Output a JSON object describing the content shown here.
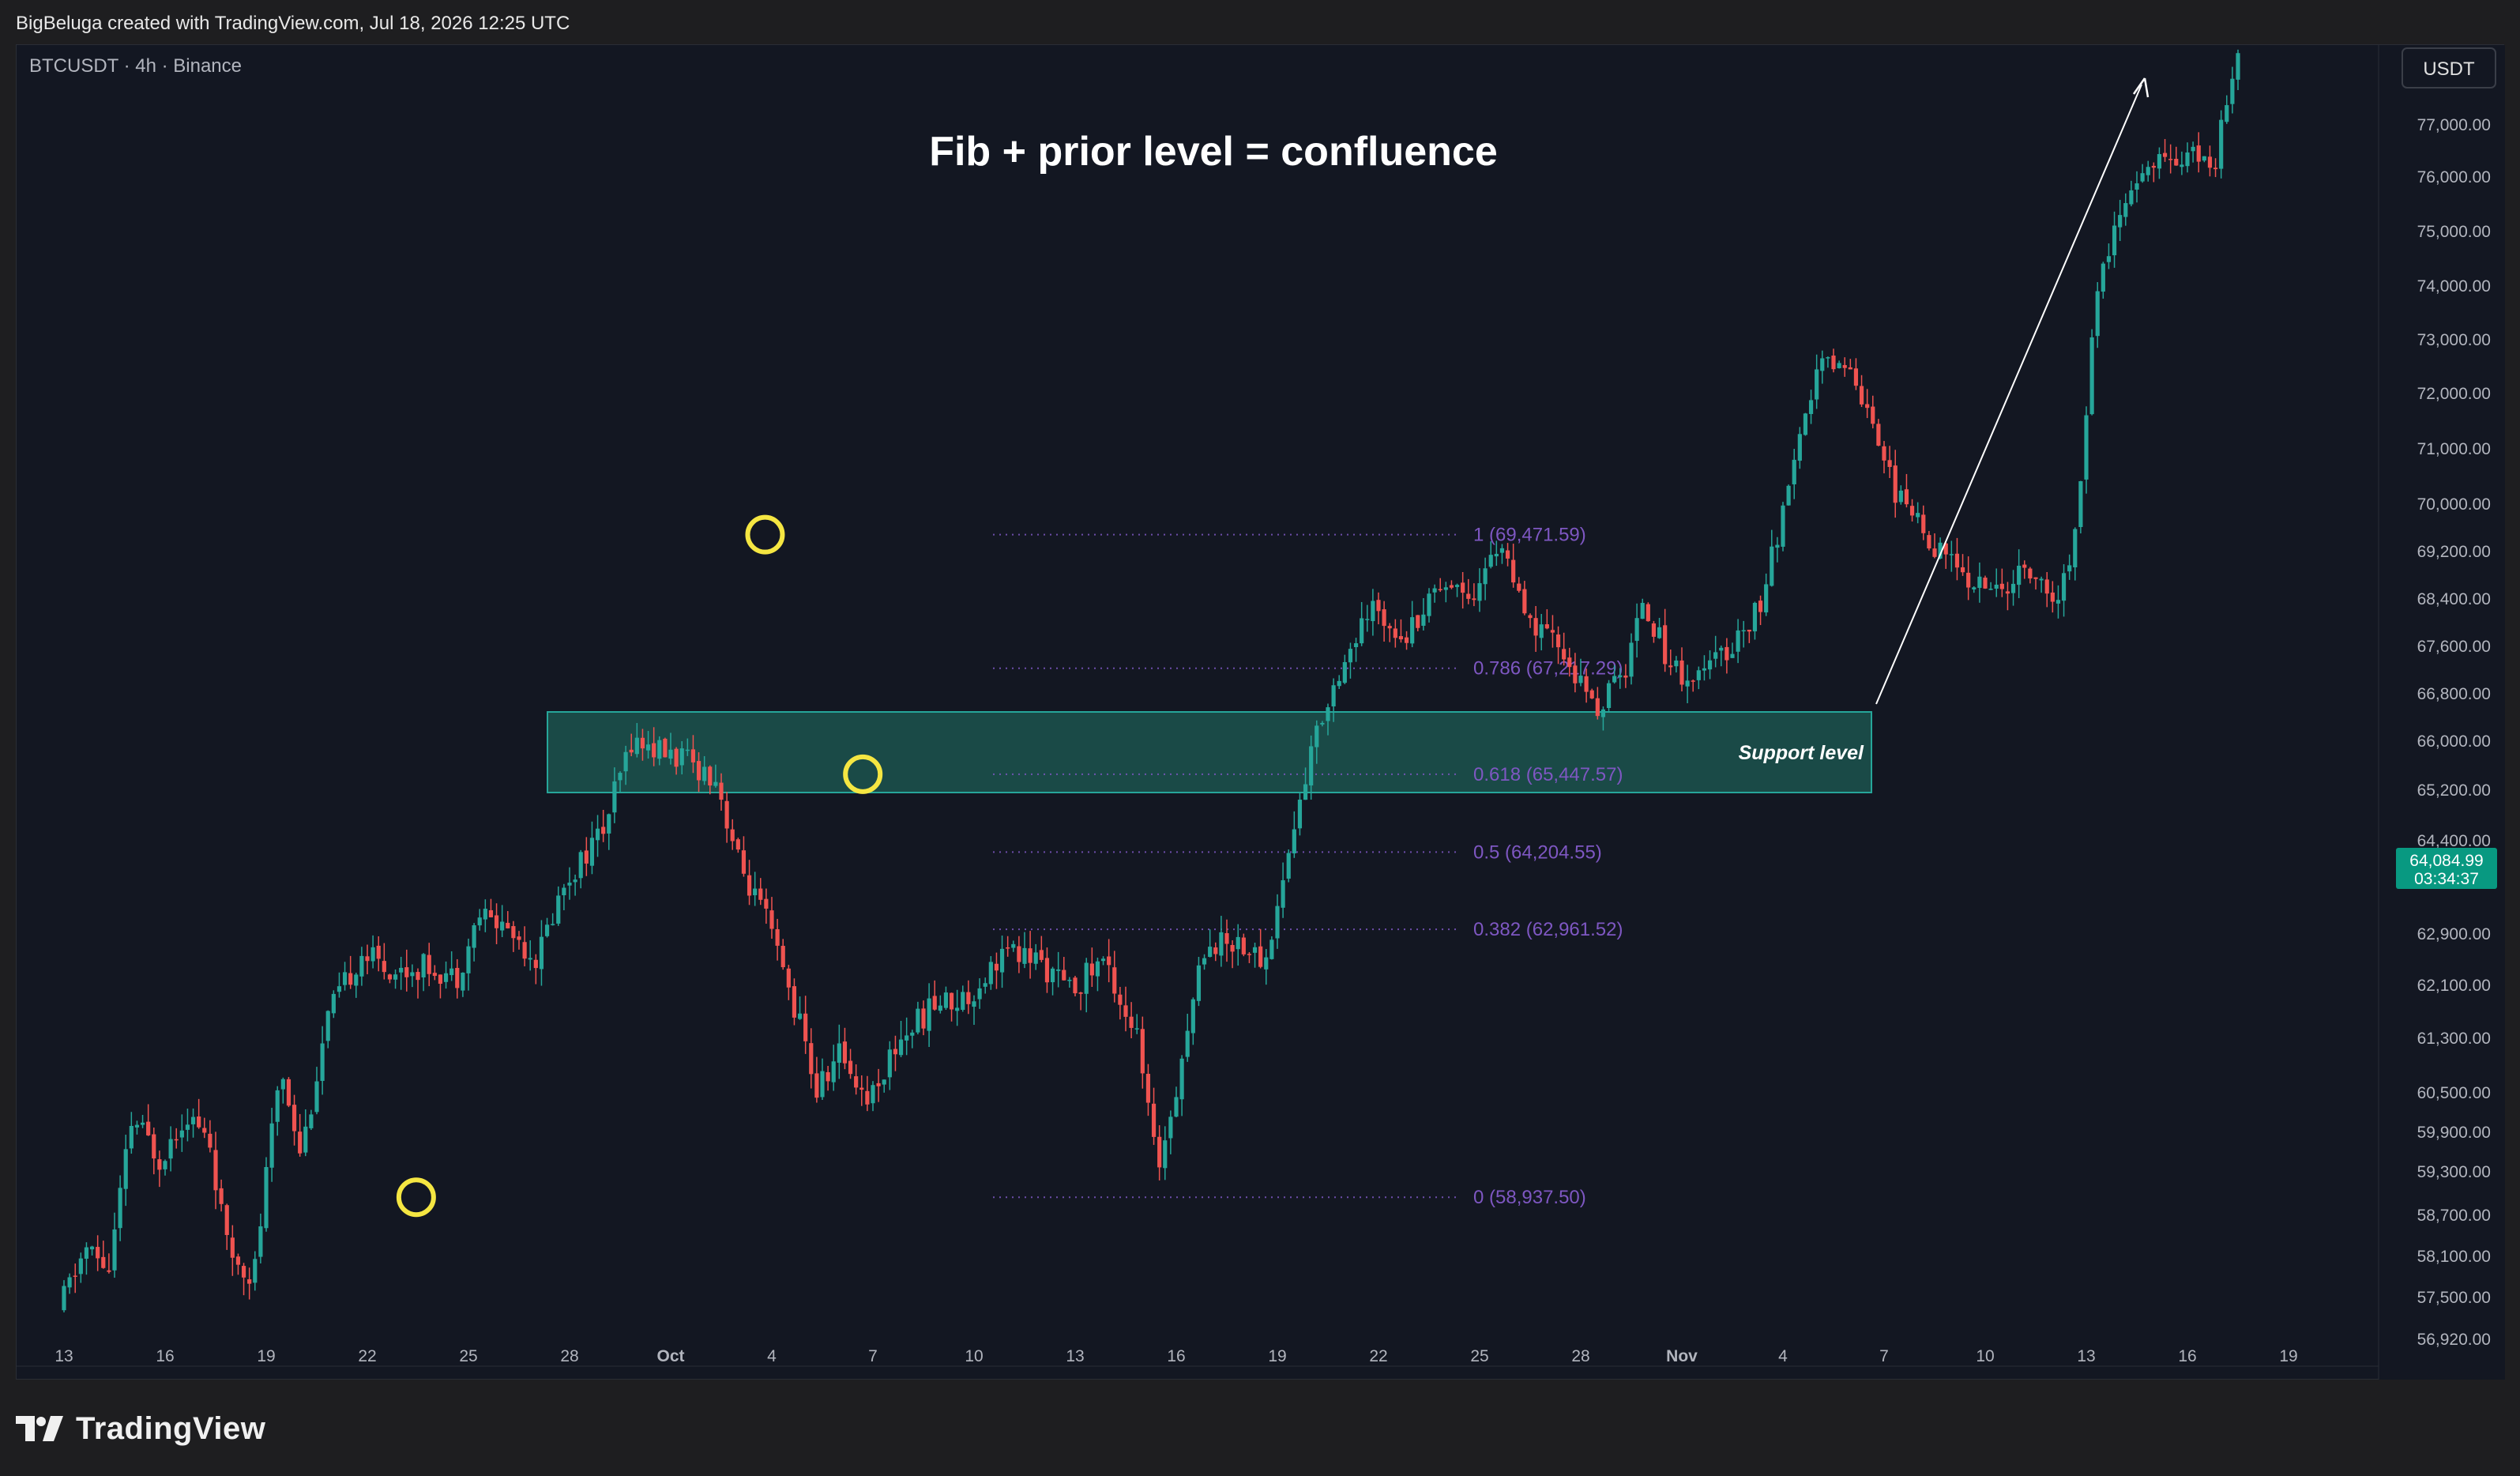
{
  "header": {
    "credit": "BigBeluga created with TradingView.com, Jul 18, 2026 12:25 UTC"
  },
  "symbol_info": "BTCUSDT · 4h · Binance",
  "currency_button": "USDT",
  "footer": {
    "logo_text": "TradingView"
  },
  "colors": {
    "background": "#131722",
    "bull": "#26a69a",
    "bear": "#ef5350",
    "fib": "#7e57c2",
    "zone_fill": "#1d5c54",
    "zone_border": "#26a69a",
    "highlight_circle": "#f5e642",
    "last_price_tag": "#089981"
  },
  "chart_data": {
    "type": "candlestick",
    "title": "Fib + prior level = confluence",
    "symbol": "BTCUSDT",
    "timeframe": "4h",
    "exchange": "Binance",
    "x_ticks": [
      "13",
      "16",
      "19",
      "22",
      "25",
      "28",
      "Oct",
      "4",
      "7",
      "10",
      "13",
      "16",
      "19",
      "22",
      "25",
      "28",
      "Nov",
      "4",
      "7",
      "10",
      "13",
      "16",
      "19"
    ],
    "y_ticks": [
      "77,000.00",
      "76,000.00",
      "75,000.00",
      "74,000.00",
      "73,000.00",
      "72,000.00",
      "71,000.00",
      "70,000.00",
      "69,200.00",
      "68,400.00",
      "67,600.00",
      "66,800.00",
      "66,000.00",
      "65,200.00",
      "64,400.00",
      "62,900.00",
      "62,100.00",
      "61,300.00",
      "60,500.00",
      "59,900.00",
      "59,300.00",
      "58,700.00",
      "58,100.00",
      "57,500.00",
      "56,920.00"
    ],
    "last_price": {
      "value": "64,084.99",
      "countdown": "03:34:37"
    },
    "fib_levels": [
      {
        "ratio": "1",
        "price": 69471.59,
        "label": "1 (69,471.59)"
      },
      {
        "ratio": "0.786",
        "price": 67217.29,
        "label": "0.786 (67,217.29)"
      },
      {
        "ratio": "0.618",
        "price": 65447.57,
        "label": "0.618 (65,447.57)"
      },
      {
        "ratio": "0.5",
        "price": 64204.55,
        "label": "0.5 (64,204.55)"
      },
      {
        "ratio": "0.382",
        "price": 62961.52,
        "label": "0.382 (62,961.52)"
      },
      {
        "ratio": "0",
        "price": 58937.5,
        "label": "0 (58,937.50)"
      }
    ],
    "support_zone": {
      "label": "Support level",
      "low": 65150,
      "high": 66480
    },
    "highlight_points": [
      {
        "day": 10.45,
        "price": 58937.5
      },
      {
        "day": 20.8,
        "price": 69471.59
      },
      {
        "day": 23.7,
        "price": 65447.57
      }
    ],
    "price_path": [
      [
        0,
        57300
      ],
      [
        0.8,
        58200
      ],
      [
        1.5,
        57900
      ],
      [
        2.2,
        60100
      ],
      [
        3.0,
        59500
      ],
      [
        3.8,
        60200
      ],
      [
        4.5,
        59700
      ],
      [
        5.0,
        58200
      ],
      [
        5.8,
        57800
      ],
      [
        6.6,
        60900
      ],
      [
        7.2,
        59600
      ],
      [
        8.0,
        61600
      ],
      [
        9.0,
        62600
      ],
      [
        10.0,
        62300
      ],
      [
        11.0,
        62400
      ],
      [
        11.8,
        62200
      ],
      [
        12.5,
        63200
      ],
      [
        13.3,
        63000
      ],
      [
        14.2,
        62500
      ],
      [
        15.0,
        63700
      ],
      [
        16.2,
        64600
      ],
      [
        17.0,
        66000
      ],
      [
        18.5,
        65700
      ],
      [
        19.5,
        65400
      ],
      [
        20.2,
        64000
      ],
      [
        21.0,
        63100
      ],
      [
        22.0,
        61500
      ],
      [
        22.5,
        60500
      ],
      [
        23.2,
        61100
      ],
      [
        24.0,
        60400
      ],
      [
        25.0,
        61300
      ],
      [
        26.0,
        61800
      ],
      [
        27.0,
        61900
      ],
      [
        28.0,
        62600
      ],
      [
        29.0,
        62500
      ],
      [
        30.0,
        62000
      ],
      [
        31.0,
        62500
      ],
      [
        32.0,
        61300
      ],
      [
        32.6,
        59300
      ],
      [
        33.2,
        60700
      ],
      [
        34.0,
        62700
      ],
      [
        35.0,
        62800
      ],
      [
        35.8,
        62400
      ],
      [
        36.5,
        64200
      ],
      [
        37.3,
        66100
      ],
      [
        38.0,
        67200
      ],
      [
        39.0,
        68200
      ],
      [
        40.0,
        67800
      ],
      [
        41.0,
        68700
      ],
      [
        42.0,
        68500
      ],
      [
        42.8,
        69400
      ],
      [
        43.5,
        68000
      ],
      [
        44.5,
        67600
      ],
      [
        45.6,
        66500
      ],
      [
        46.5,
        67200
      ],
      [
        47.0,
        68400
      ],
      [
        47.8,
        67300
      ],
      [
        48.5,
        67000
      ],
      [
        49.5,
        67500
      ],
      [
        50.5,
        68300
      ],
      [
        51.5,
        70600
      ],
      [
        52.2,
        72500
      ],
      [
        53.0,
        72600
      ],
      [
        53.8,
        71600
      ],
      [
        54.5,
        70200
      ],
      [
        55.5,
        69400
      ],
      [
        56.5,
        68800
      ],
      [
        57.5,
        68500
      ],
      [
        58.5,
        68900
      ],
      [
        59.2,
        68200
      ],
      [
        59.8,
        69200
      ],
      [
        60.5,
        74000
      ],
      [
        61.2,
        75300
      ],
      [
        62.0,
        76200
      ],
      [
        63.0,
        76400
      ],
      [
        64.0,
        76300
      ],
      [
        64.6,
        78400
      ]
    ]
  }
}
